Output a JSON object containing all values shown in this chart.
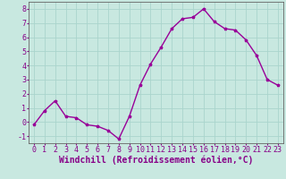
{
  "x": [
    0,
    1,
    2,
    3,
    4,
    5,
    6,
    7,
    8,
    9,
    10,
    11,
    12,
    13,
    14,
    15,
    16,
    17,
    18,
    19,
    20,
    21,
    22,
    23
  ],
  "y": [
    -0.2,
    0.8,
    1.5,
    0.4,
    0.3,
    -0.2,
    -0.3,
    -0.6,
    -1.2,
    0.4,
    2.6,
    4.1,
    5.3,
    6.6,
    7.3,
    7.4,
    8.0,
    7.1,
    6.6,
    6.5,
    5.8,
    4.7,
    3.0,
    2.6
  ],
  "line_color": "#990099",
  "marker": "*",
  "marker_size": 2.5,
  "linewidth": 1.0,
  "xlabel": "Windchill (Refroidissement éolien,°C)",
  "xlim": [
    -0.5,
    23.5
  ],
  "ylim": [
    -1.5,
    8.5
  ],
  "yticks": [
    -1,
    0,
    1,
    2,
    3,
    4,
    5,
    6,
    7,
    8
  ],
  "xticks": [
    0,
    1,
    2,
    3,
    4,
    5,
    6,
    7,
    8,
    9,
    10,
    11,
    12,
    13,
    14,
    15,
    16,
    17,
    18,
    19,
    20,
    21,
    22,
    23
  ],
  "bg_color": "#c8e8e0",
  "grid_color": "#aad4cc",
  "tick_label_fontsize": 6,
  "xlabel_fontsize": 7,
  "label_color": "#880088",
  "spine_color": "#666666"
}
